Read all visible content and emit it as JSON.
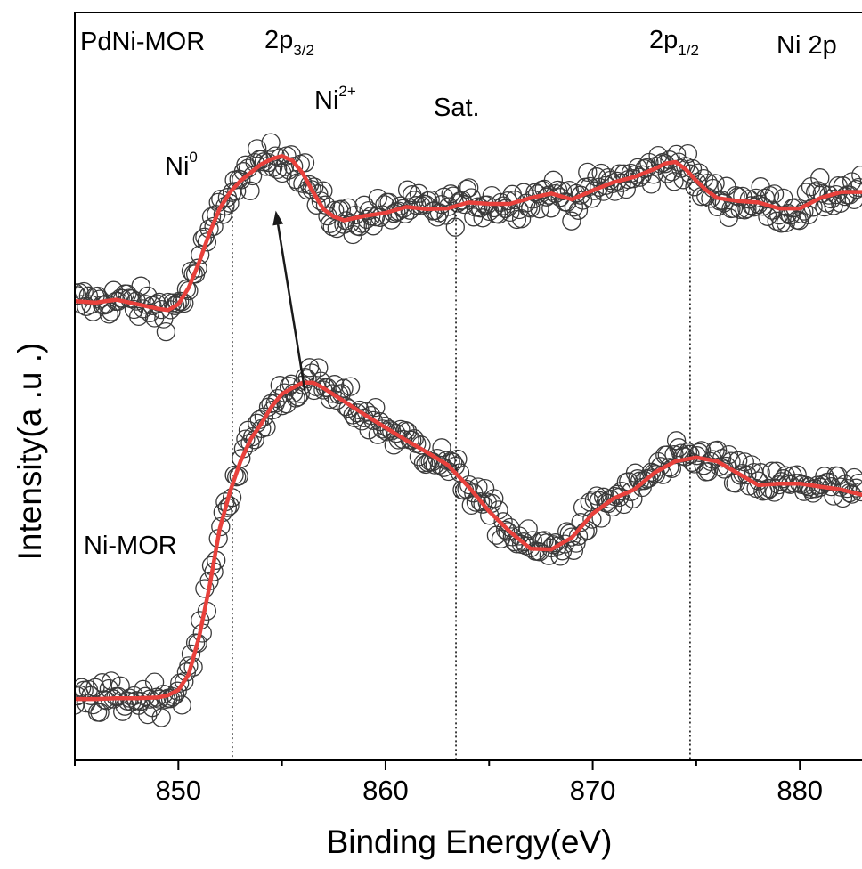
{
  "chart_data": {
    "type": "scatter",
    "xlabel": "Binding Energy(eV)",
    "ylabel": "Intensity(a .u .)",
    "xlim": [
      845,
      883
    ],
    "ylim": [
      0,
      1
    ],
    "x_ticks": [
      "850",
      "860",
      "870",
      "880"
    ],
    "x_tick_values": [
      850,
      860,
      870,
      880
    ],
    "y_ticks_shown": false,
    "grid": false,
    "legend": "none",
    "colors": {
      "fit": "#e8413c",
      "marker": "#3a3a3a",
      "axis": "#000000"
    },
    "reference_lines_eV": [
      852.6,
      863.4,
      874.7
    ],
    "annotations": {
      "top_sample": "PdNi-MOR",
      "bottom_sample": "Ni-MOR",
      "panel": "Ni 2p",
      "p32_main": "2p",
      "p32_sub": "3/2",
      "p12_main": "2p",
      "p12_sub": "1/2",
      "ni0_main": "Ni",
      "ni0_sup": "0",
      "ni2_main": "Ni",
      "ni2_sup": "2+",
      "sat": "Sat."
    },
    "arrow": {
      "from": [
        856.1,
        0.495
      ],
      "to": [
        854.7,
        0.735
      ]
    },
    "series": [
      {
        "role": "PdNi-MOR fit",
        "x": [
          845,
          846,
          847,
          848,
          849,
          849.5,
          850,
          850.5,
          851,
          851.5,
          852,
          852.5,
          853,
          853.5,
          854,
          854.5,
          855,
          855.5,
          856,
          856.5,
          857,
          857.5,
          858,
          859,
          860,
          861,
          862,
          863,
          864,
          865,
          866,
          867,
          868,
          869,
          870,
          871,
          872,
          873,
          873.5,
          874,
          874.5,
          875,
          875.5,
          876,
          877,
          878,
          879,
          880,
          881,
          882,
          883
        ],
        "y": [
          0.614,
          0.612,
          0.616,
          0.61,
          0.604,
          0.602,
          0.61,
          0.632,
          0.666,
          0.705,
          0.738,
          0.76,
          0.775,
          0.786,
          0.797,
          0.804,
          0.808,
          0.802,
          0.785,
          0.76,
          0.737,
          0.727,
          0.722,
          0.728,
          0.732,
          0.74,
          0.737,
          0.738,
          0.746,
          0.744,
          0.744,
          0.752,
          0.758,
          0.75,
          0.762,
          0.773,
          0.78,
          0.791,
          0.798,
          0.8,
          0.79,
          0.775,
          0.762,
          0.752,
          0.748,
          0.746,
          0.738,
          0.738,
          0.752,
          0.76,
          0.76
        ]
      },
      {
        "role": "Ni-MOR fit",
        "x": [
          845,
          846,
          847,
          848,
          849,
          849.5,
          850,
          850.5,
          851,
          851.5,
          852,
          852.5,
          853,
          853.5,
          854,
          854.5,
          855,
          855.5,
          856,
          856.5,
          857,
          858,
          859,
          860,
          861,
          862,
          863,
          864,
          865,
          866,
          867,
          868,
          869,
          870,
          871,
          872,
          873,
          874,
          875,
          876,
          877,
          878,
          879,
          880,
          881,
          882,
          883
        ],
        "y": [
          0.082,
          0.082,
          0.083,
          0.083,
          0.084,
          0.087,
          0.094,
          0.115,
          0.165,
          0.232,
          0.31,
          0.36,
          0.4,
          0.43,
          0.45,
          0.473,
          0.49,
          0.498,
          0.505,
          0.505,
          0.498,
          0.48,
          0.462,
          0.445,
          0.428,
          0.412,
          0.395,
          0.366,
          0.333,
          0.306,
          0.283,
          0.282,
          0.298,
          0.33,
          0.35,
          0.362,
          0.385,
          0.4,
          0.405,
          0.4,
          0.384,
          0.368,
          0.37,
          0.37,
          0.366,
          0.362,
          0.355
        ]
      }
    ]
  }
}
